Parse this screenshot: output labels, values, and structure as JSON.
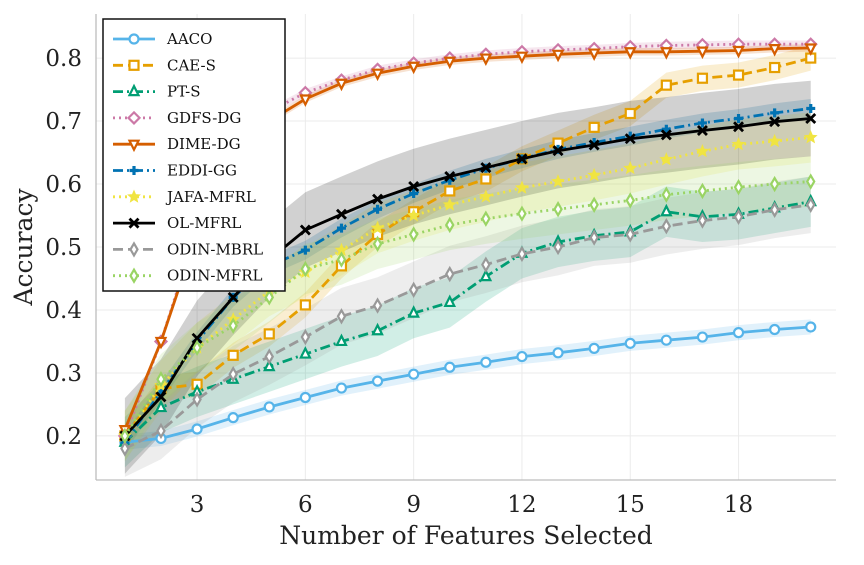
{
  "chart_data": {
    "type": "line",
    "xlabel": "Number of Features Selected",
    "ylabel": "Accuracy",
    "xlim": [
      0.2,
      20.7
    ],
    "ylim": [
      0.13,
      0.87
    ],
    "xticks": [
      3,
      6,
      9,
      12,
      15,
      18
    ],
    "yticks": [
      0.2,
      0.3,
      0.4,
      0.5,
      0.6,
      0.7,
      0.8
    ],
    "grid": true,
    "legend_position": "top-left",
    "x": [
      1,
      2,
      3,
      4,
      5,
      6,
      7,
      8,
      9,
      10,
      11,
      12,
      13,
      14,
      15,
      16,
      17,
      18,
      19,
      20
    ],
    "series": [
      {
        "name": "AACO",
        "color": "#56b4e9",
        "dash": "solid",
        "marker": "circle",
        "band": 0.012,
        "values": [
          0.19,
          0.196,
          0.211,
          0.229,
          0.246,
          0.261,
          0.276,
          0.287,
          0.298,
          0.309,
          0.317,
          0.326,
          0.332,
          0.339,
          0.347,
          0.352,
          0.357,
          0.364,
          0.369,
          0.373
        ]
      },
      {
        "name": "CAE-S",
        "color": "#e69f00",
        "dash": "dashed",
        "marker": "square",
        "band": 0.02,
        "values": [
          0.2,
          0.275,
          0.282,
          0.328,
          0.362,
          0.408,
          0.47,
          0.52,
          0.556,
          0.589,
          0.608,
          0.64,
          0.665,
          0.69,
          0.712,
          0.757,
          0.768,
          0.773,
          0.785,
          0.8
        ]
      },
      {
        "name": "PT-S",
        "color": "#009e73",
        "dash": "dashdot",
        "marker": "triangle",
        "band": 0.04,
        "values": [
          0.19,
          0.245,
          0.27,
          0.29,
          0.31,
          0.33,
          0.35,
          0.367,
          0.395,
          0.412,
          0.453,
          0.49,
          0.508,
          0.518,
          0.524,
          0.556,
          0.548,
          0.552,
          0.562,
          0.572
        ]
      },
      {
        "name": "GDFS-DG",
        "color": "#cc79a7",
        "dash": "dotted",
        "marker": "diamond",
        "band": 0.006,
        "values": [
          0.2,
          0.35,
          0.53,
          0.65,
          0.715,
          0.745,
          0.765,
          0.782,
          0.792,
          0.8,
          0.806,
          0.81,
          0.813,
          0.815,
          0.818,
          0.82,
          0.821,
          0.822,
          0.822,
          0.822
        ]
      },
      {
        "name": "DIME-DG",
        "color": "#d55e00",
        "dash": "solid",
        "marker": "triangle-down",
        "band": 0.006,
        "values": [
          0.21,
          0.35,
          0.52,
          0.64,
          0.7,
          0.735,
          0.76,
          0.776,
          0.787,
          0.795,
          0.8,
          0.803,
          0.806,
          0.808,
          0.81,
          0.81,
          0.811,
          0.812,
          0.815,
          0.816
        ]
      },
      {
        "name": "EDDI-GG",
        "color": "#0072b2",
        "dash": "dashdot",
        "marker": "plus",
        "band": 0.015,
        "values": [
          0.19,
          0.27,
          0.35,
          0.42,
          0.47,
          0.495,
          0.53,
          0.56,
          0.585,
          0.606,
          0.625,
          0.64,
          0.655,
          0.666,
          0.676,
          0.687,
          0.697,
          0.704,
          0.713,
          0.72
        ]
      },
      {
        "name": "JAFA-MFRL",
        "color": "#f0e442",
        "dash": "dotted",
        "marker": "star",
        "band": 0.04,
        "values": [
          0.2,
          0.28,
          0.34,
          0.385,
          0.43,
          0.46,
          0.495,
          0.53,
          0.55,
          0.567,
          0.58,
          0.594,
          0.604,
          0.614,
          0.625,
          0.639,
          0.652,
          0.663,
          0.668,
          0.674
        ]
      },
      {
        "name": "OL-MFRL",
        "color": "#000000",
        "dash": "solid",
        "marker": "x",
        "band": 0.06,
        "values": [
          0.2,
          0.262,
          0.355,
          0.42,
          0.48,
          0.527,
          0.552,
          0.576,
          0.596,
          0.612,
          0.626,
          0.64,
          0.653,
          0.662,
          0.672,
          0.678,
          0.685,
          0.691,
          0.699,
          0.704
        ]
      },
      {
        "name": "ODIN-MBRL",
        "color": "#999999",
        "dash": "dashed",
        "marker": "thin-diamond",
        "band": 0.045,
        "values": [
          0.18,
          0.208,
          0.258,
          0.298,
          0.326,
          0.357,
          0.39,
          0.407,
          0.432,
          0.457,
          0.472,
          0.489,
          0.5,
          0.515,
          0.52,
          0.533,
          0.542,
          0.548,
          0.559,
          0.567
        ]
      },
      {
        "name": "ODIN-MFRL",
        "color": "#9ad464",
        "dash": "dotted",
        "marker": "thin-diamond",
        "band": 0.04,
        "values": [
          0.2,
          0.29,
          0.34,
          0.375,
          0.42,
          0.465,
          0.48,
          0.505,
          0.52,
          0.535,
          0.545,
          0.553,
          0.56,
          0.567,
          0.574,
          0.583,
          0.589,
          0.595,
          0.6,
          0.604
        ]
      }
    ]
  }
}
